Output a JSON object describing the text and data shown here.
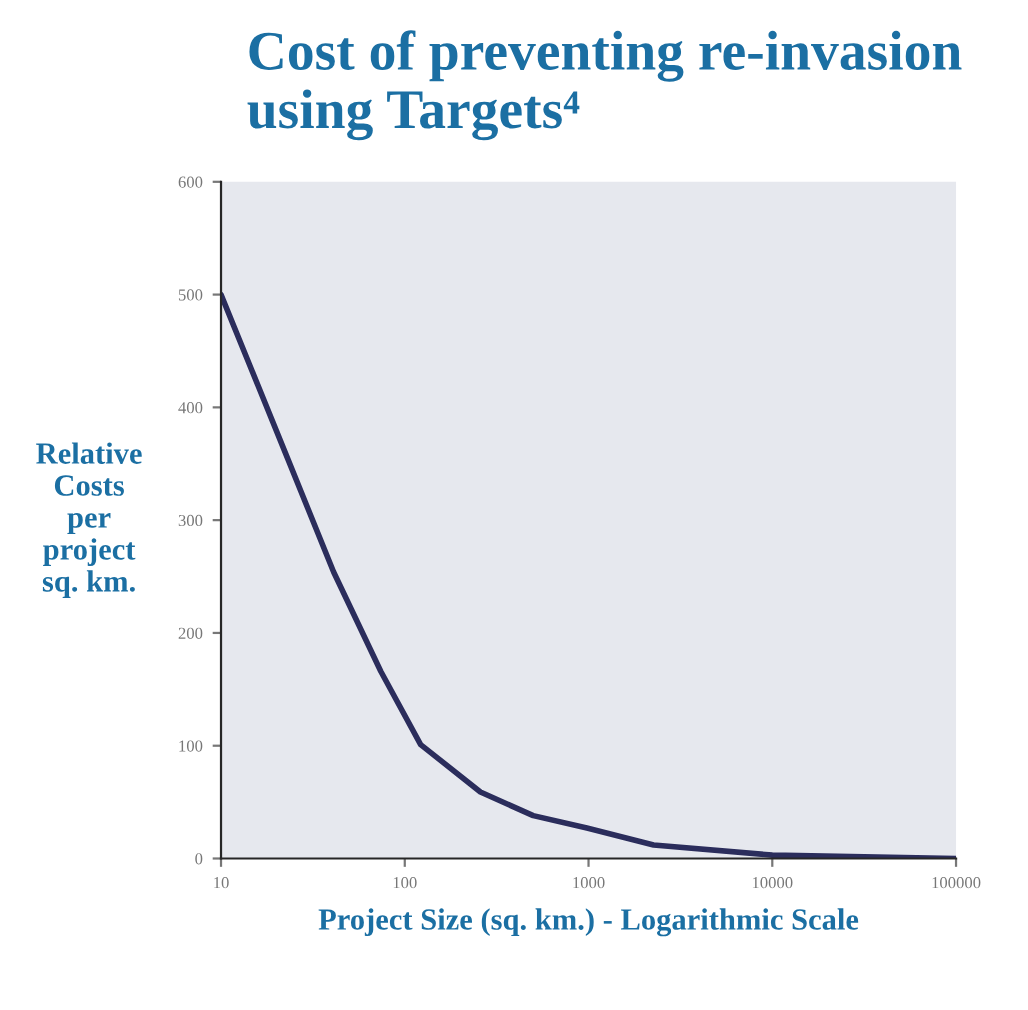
{
  "chart_data": {
    "type": "line",
    "title": "Cost of preventing re-invasion\nusing Targets⁴",
    "xlabel": "Project Size (sq. km.) - Logarithmic Scale",
    "ylabel": "Relative\nCosts\nper\nproject\nsq. km.",
    "log": "x",
    "xlim": [
      10,
      100000
    ],
    "xticks": [
      10,
      100,
      1000,
      10000,
      100000
    ],
    "ylim": [
      0,
      600
    ],
    "yticks": [
      0,
      100,
      200,
      300,
      400,
      500,
      600
    ],
    "grid": false,
    "series": [
      {
        "color": "#2b2d5c",
        "x": [
          10,
          23,
          41,
          74,
          122,
          258,
          500,
          980,
          2260,
          10000,
          100000
        ],
        "values": [
          500,
          355,
          254,
          166,
          101,
          59,
          38,
          27,
          12,
          3,
          0
        ]
      }
    ]
  }
}
